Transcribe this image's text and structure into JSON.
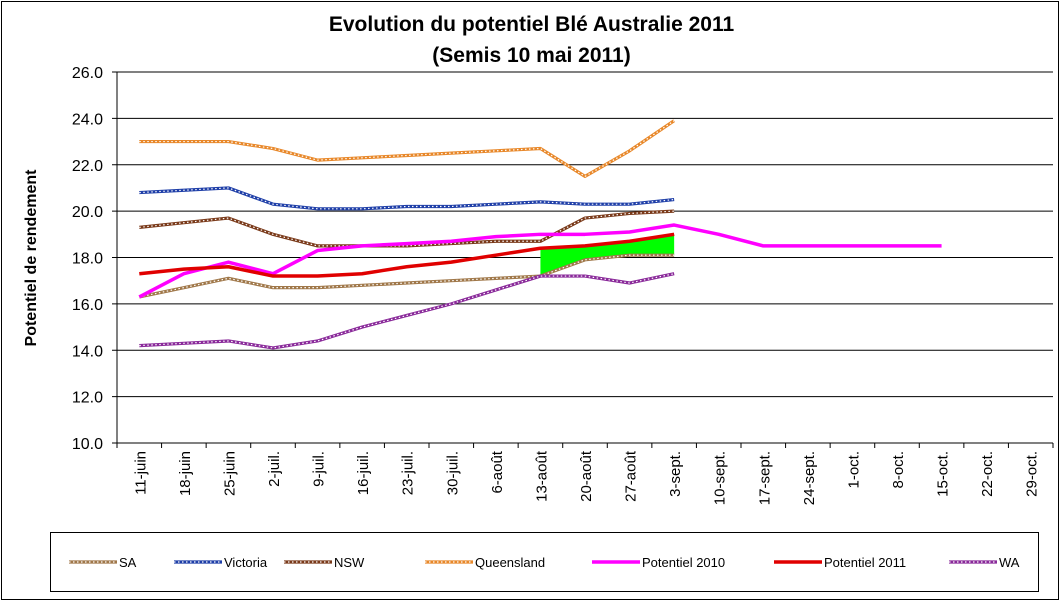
{
  "chart_data": {
    "type": "line",
    "title": "Evolution du potentiel Blé Australie 2011",
    "subtitle": "(Semis 10 mai 2011)",
    "ylabel": "Potentiel de rendement",
    "xlabel": "",
    "ylim": [
      10.0,
      26.0
    ],
    "yticks": [
      "10.0",
      "12.0",
      "14.0",
      "16.0",
      "18.0",
      "20.0",
      "22.0",
      "24.0",
      "26.0"
    ],
    "categories": [
      "11-juin",
      "18-juin",
      "25-juin",
      "2-juil.",
      "9-juil.",
      "16-juil.",
      "23-juil.",
      "30-juil.",
      "6-août",
      "13-août",
      "20-août",
      "27-août",
      "3-sept.",
      "10-sept.",
      "17-sept.",
      "24-sept.",
      "1-oct.",
      "8-oct.",
      "15-oct.",
      "22-oct.",
      "29-oct."
    ],
    "grid": true,
    "legend_position": "bottom",
    "series": [
      {
        "name": "SA",
        "color": "#a0784a",
        "style": "dotted",
        "x": [
          0,
          1,
          2,
          3,
          4,
          5,
          6,
          7,
          8,
          9,
          10,
          11,
          12
        ],
        "values": [
          16.3,
          16.7,
          17.1,
          16.7,
          16.7,
          16.8,
          16.9,
          17.0,
          17.1,
          17.2,
          17.9,
          18.1,
          18.1
        ]
      },
      {
        "name": "Victoria",
        "color": "#1f3fa8",
        "style": "dotted",
        "x": [
          0,
          1,
          2,
          3,
          4,
          5,
          6,
          7,
          8,
          9,
          10,
          11,
          12
        ],
        "values": [
          20.8,
          20.9,
          21.0,
          20.3,
          20.1,
          20.1,
          20.2,
          20.2,
          20.3,
          20.4,
          20.3,
          20.3,
          20.5
        ]
      },
      {
        "name": "NSW",
        "color": "#7a3a1a",
        "style": "dotted",
        "x": [
          0,
          1,
          2,
          3,
          4,
          5,
          6,
          7,
          8,
          9,
          10,
          11,
          12
        ],
        "values": [
          19.3,
          19.5,
          19.7,
          19.0,
          18.5,
          18.5,
          18.5,
          18.6,
          18.7,
          18.7,
          19.7,
          19.9,
          20.0
        ]
      },
      {
        "name": "Queensland",
        "color": "#e8882a",
        "style": "dotted",
        "x": [
          0,
          1,
          2,
          3,
          4,
          5,
          6,
          7,
          8,
          9,
          10,
          11,
          12
        ],
        "values": [
          23.0,
          23.0,
          23.0,
          22.7,
          22.2,
          22.3,
          22.4,
          22.5,
          22.6,
          22.7,
          21.5,
          22.6,
          23.9
        ]
      },
      {
        "name": "Potentiel 2010",
        "color": "#ff00ff",
        "style": "solid",
        "x": [
          0,
          1,
          2,
          3,
          4,
          5,
          6,
          7,
          8,
          9,
          10,
          11,
          12,
          13,
          14,
          15,
          16,
          17,
          18
        ],
        "values": [
          16.3,
          17.3,
          17.8,
          17.3,
          18.3,
          18.5,
          18.6,
          18.7,
          18.9,
          19.0,
          19.0,
          19.1,
          19.4,
          19.0,
          18.5,
          18.5,
          18.5,
          18.5,
          18.5
        ]
      },
      {
        "name": "Potentiel 2011",
        "color": "#e00000",
        "style": "solid",
        "x": [
          0,
          1,
          2,
          3,
          4,
          5,
          6,
          7,
          8,
          9,
          10,
          11,
          12
        ],
        "values": [
          17.3,
          17.5,
          17.6,
          17.2,
          17.2,
          17.3,
          17.6,
          17.8,
          18.1,
          18.4,
          18.5,
          18.7,
          19.0
        ]
      },
      {
        "name": "WA",
        "color": "#8a2a9a",
        "style": "dotted",
        "x": [
          0,
          1,
          2,
          3,
          4,
          5,
          6,
          7,
          8,
          9,
          10,
          11,
          12
        ],
        "values": [
          14.2,
          14.3,
          14.4,
          14.1,
          14.4,
          15.0,
          15.5,
          16.0,
          16.6,
          17.2,
          17.2,
          16.9,
          17.3
        ]
      }
    ],
    "fill_between": {
      "color": "#00ff00",
      "between": [
        "Potentiel 2011",
        "SA"
      ],
      "x_from": 9,
      "x_to": 12
    }
  }
}
